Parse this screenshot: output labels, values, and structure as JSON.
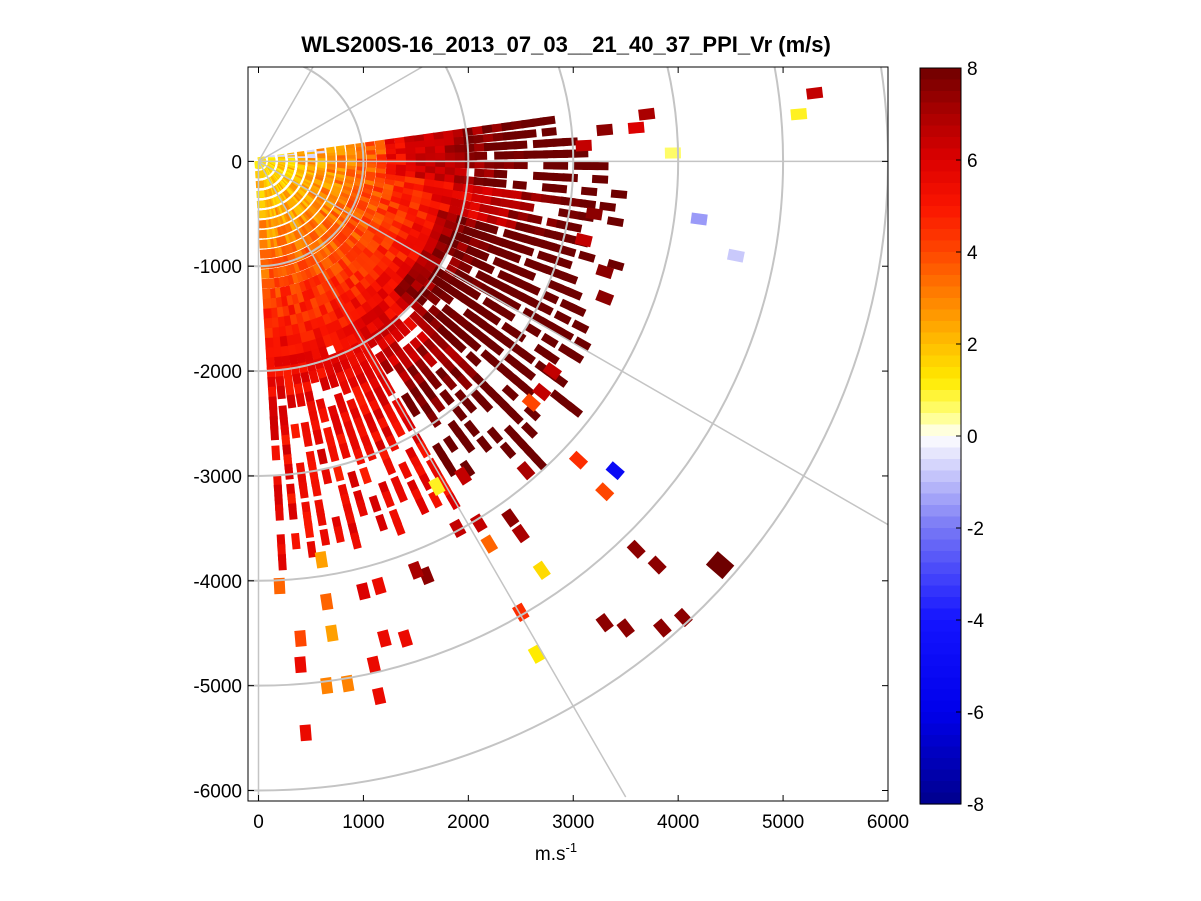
{
  "chart_data": {
    "type": "heatmap",
    "subtype": "polar-ppi-scan",
    "title": "WLS200S-16_2013_07_03__21_40_37_PPI_Vr (m/s)",
    "xlabel": "m.s",
    "xlabel_superscript": "-1",
    "ylabel": "",
    "xlim": [
      -100,
      6000
    ],
    "ylim": [
      -6100,
      900
    ],
    "x_ticks": [
      0,
      1000,
      2000,
      3000,
      4000,
      5000,
      6000
    ],
    "y_ticks": [
      0,
      -1000,
      -2000,
      -3000,
      -4000,
      -5000,
      -6000
    ],
    "x_tick_labels": [
      "0",
      "1000",
      "2000",
      "3000",
      "4000",
      "5000",
      "6000"
    ],
    "y_tick_labels": [
      "0",
      "-1000",
      "-2000",
      "-3000",
      "-4000",
      "-5000",
      "-6000"
    ],
    "polar_grid": {
      "range_rings_m": [
        1000,
        2000,
        3000,
        4000,
        5000,
        6000
      ],
      "spoke_angles_deg": [
        0,
        -30,
        -60,
        -90,
        30,
        60
      ]
    },
    "scan": {
      "azimuth_range_deg": [
        8,
        -87
      ],
      "dense_max_range_m": [
        3600,
        2800,
        3600
      ]
    },
    "colorbar": {
      "min": -8,
      "max": 8,
      "ticks": [
        8,
        6,
        4,
        2,
        0,
        -2,
        -4,
        -6,
        -8
      ],
      "tick_labels": [
        "8",
        "6",
        "4",
        "2",
        "0",
        "-2",
        "-4",
        "-6",
        "-8"
      ]
    },
    "sparse_points": [
      {
        "x": 1000,
        "y": -4100,
        "v": 6.0
      },
      {
        "x": 1150,
        "y": -4050,
        "v": 5.5
      },
      {
        "x": 1600,
        "y": -3950,
        "v": 7.5
      },
      {
        "x": 1500,
        "y": -3900,
        "v": 7.0
      },
      {
        "x": 2700,
        "y": -3900,
        "v": 1.5
      },
      {
        "x": 3600,
        "y": -3700,
        "v": 7.5
      },
      {
        "x": 3800,
        "y": -3850,
        "v": 7.5
      },
      {
        "x": 4400,
        "y": -3850,
        "v": 8.0
      },
      {
        "x": 3300,
        "y": -4400,
        "v": 7.5
      },
      {
        "x": 3500,
        "y": -4450,
        "v": 7.5
      },
      {
        "x": 3850,
        "y": -4450,
        "v": 7.5
      },
      {
        "x": 4050,
        "y": -4350,
        "v": 7.5
      },
      {
        "x": 2500,
        "y": -4300,
        "v": 4.5
      },
      {
        "x": 2650,
        "y": -4700,
        "v": 1.2
      },
      {
        "x": 1200,
        "y": -4550,
        "v": 5.5
      },
      {
        "x": 1400,
        "y": -4550,
        "v": 5.5
      },
      {
        "x": 700,
        "y": -4500,
        "v": 2.5
      },
      {
        "x": 400,
        "y": -4550,
        "v": 4.0
      },
      {
        "x": 400,
        "y": -4800,
        "v": 5.5
      },
      {
        "x": 1100,
        "y": -4800,
        "v": 5.5
      },
      {
        "x": 650,
        "y": -5000,
        "v": 3.0
      },
      {
        "x": 850,
        "y": -4980,
        "v": 3.0
      },
      {
        "x": 1150,
        "y": -5100,
        "v": 5.5
      },
      {
        "x": 450,
        "y": -5450,
        "v": 5.5
      },
      {
        "x": 200,
        "y": -4050,
        "v": 3.5
      },
      {
        "x": 600,
        "y": -3800,
        "v": 2.5
      },
      {
        "x": 650,
        "y": -4200,
        "v": 3.5
      },
      {
        "x": 3050,
        "y": -2850,
        "v": 4.5
      },
      {
        "x": 3400,
        "y": -2950,
        "v": -5.0
      },
      {
        "x": 3300,
        "y": -3150,
        "v": 4.0
      },
      {
        "x": 2550,
        "y": -2950,
        "v": 7.0
      },
      {
        "x": 2200,
        "y": -3650,
        "v": 3.5
      },
      {
        "x": 2400,
        "y": -3400,
        "v": 7.5
      },
      {
        "x": 2500,
        "y": -3550,
        "v": 7.0
      },
      {
        "x": 1900,
        "y": -3500,
        "v": 6.5
      },
      {
        "x": 2100,
        "y": -3450,
        "v": 6.5
      },
      {
        "x": 1700,
        "y": -3100,
        "v": 1.0
      },
      {
        "x": 1950,
        "y": -3000,
        "v": 6.5
      },
      {
        "x": 2800,
        "y": -2000,
        "v": 6.5
      },
      {
        "x": 2600,
        "y": -2300,
        "v": 4.0
      },
      {
        "x": 2700,
        "y": -2200,
        "v": 6.5
      },
      {
        "x": 3300,
        "y": -1300,
        "v": 7.5
      },
      {
        "x": 3300,
        "y": 300,
        "v": 7.5
      },
      {
        "x": 3600,
        "y": 320,
        "v": 6.0
      },
      {
        "x": 3700,
        "y": 450,
        "v": 7.0
      },
      {
        "x": 3950,
        "y": 80,
        "v": 0.6
      },
      {
        "x": 3100,
        "y": 150,
        "v": 6.5
      },
      {
        "x": 4200,
        "y": -550,
        "v": -1.5
      },
      {
        "x": 4550,
        "y": -900,
        "v": -0.8
      },
      {
        "x": 5150,
        "y": 450,
        "v": 1.0
      },
      {
        "x": 5300,
        "y": 650,
        "v": 6.5
      },
      {
        "x": 3200,
        "y": -500,
        "v": 7.5
      },
      {
        "x": 3300,
        "y": -1050,
        "v": 7.5
      },
      {
        "x": 3100,
        "y": -750,
        "v": 6.5
      }
    ]
  }
}
